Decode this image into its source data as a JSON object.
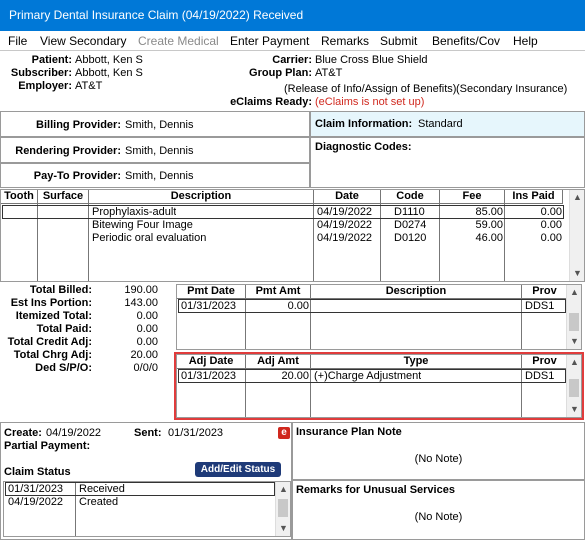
{
  "window": {
    "title": "Primary Dental Insurance Claim (04/19/2022) Received"
  },
  "menu": [
    {
      "label": "File",
      "enabled": true
    },
    {
      "label": "View Secondary",
      "enabled": true
    },
    {
      "label": "Create Medical",
      "enabled": false
    },
    {
      "label": "Enter Payment",
      "enabled": true
    },
    {
      "label": "Remarks",
      "enabled": true
    },
    {
      "label": "Submit",
      "enabled": true
    },
    {
      "label": "Benefits/Cov",
      "enabled": true
    },
    {
      "label": "Help",
      "enabled": true
    }
  ],
  "info": {
    "patient_label": "Patient:",
    "patient": "Abbott, Ken S",
    "subscriber_label": "Subscriber:",
    "subscriber": "Abbott, Ken S",
    "employer_label": "Employer:",
    "employer": "AT&T",
    "carrier_label": "Carrier:",
    "carrier": "Blue Cross Blue Shield",
    "group_plan_label": "Group Plan:",
    "group_plan": "AT&T",
    "release_text": "(Release of Info/Assign of Benefits)",
    "secondary_text": "(Secondary Insurance)",
    "eclaims_label": "eClaims Ready:",
    "eclaims": "(eClaims is not set up)"
  },
  "providers": {
    "billing_label": "Billing Provider:",
    "billing": "Smith, Dennis",
    "rendering_label": "Rendering Provider:",
    "rendering": "Smith, Dennis",
    "payto_label": "Pay-To Provider:",
    "payto": "Smith, Dennis"
  },
  "claim_info": {
    "label": "Claim Information:",
    "value": "Standard",
    "diag_label": "Diagnostic Codes:"
  },
  "procedures": {
    "headers": [
      "Tooth",
      "Surface",
      "Description",
      "Date",
      "Code",
      "Fee",
      "Ins Paid"
    ],
    "rows": [
      {
        "tooth": "",
        "surface": "",
        "description": "Prophylaxis-adult",
        "date": "04/19/2022",
        "code": "D1110",
        "fee": "85.00",
        "ins_paid": "0.00"
      },
      {
        "tooth": "",
        "surface": "",
        "description": "Bitewing Four Image",
        "date": "04/19/2022",
        "code": "D0274",
        "fee": "59.00",
        "ins_paid": "0.00"
      },
      {
        "tooth": "",
        "surface": "",
        "description": "Periodic oral evaluation",
        "date": "04/19/2022",
        "code": "D0120",
        "fee": "46.00",
        "ins_paid": "0.00"
      }
    ]
  },
  "totals": [
    {
      "label": "Total Billed:",
      "value": "190.00"
    },
    {
      "label": "Est Ins Portion:",
      "value": "143.00"
    },
    {
      "label": "Itemized Total:",
      "value": "0.00"
    },
    {
      "label": "Total Paid:",
      "value": "0.00"
    },
    {
      "label": "Total Credit Adj:",
      "value": "0.00"
    },
    {
      "label": "Total Chrg Adj:",
      "value": "20.00"
    },
    {
      "label": "Ded S/P/O:",
      "value": "0/0/0"
    }
  ],
  "payments": {
    "headers": [
      "Pmt Date",
      "Pmt Amt",
      "Description",
      "Prov"
    ],
    "rows": [
      {
        "date": "01/31/2023",
        "amount": "0.00",
        "description": "",
        "prov": "DDS1"
      }
    ]
  },
  "adjustments": {
    "headers": [
      "Adj Date",
      "Adj Amt",
      "Type",
      "Prov"
    ],
    "rows": [
      {
        "date": "01/31/2023",
        "amount": "20.00",
        "type": "(+)Charge Adjustment",
        "prov": "DDS1"
      }
    ],
    "highlight_color": "#e03c3c"
  },
  "status": {
    "create_label": "Create:",
    "create": "04/19/2022",
    "sent_label": "Sent:",
    "sent": "01/31/2023",
    "partial_label": "Partial Payment:",
    "claim_status_label": "Claim Status",
    "edit_button": "Add/Edit Status",
    "eclaim_icon_color": "#d0281e",
    "rows": [
      {
        "date": "01/31/2023",
        "status": "Received"
      },
      {
        "date": "04/19/2022",
        "status": "Created"
      }
    ]
  },
  "notes": {
    "plan_note_label": "Insurance Plan Note",
    "plan_note": "(No Note)",
    "remarks_label": "Remarks for Unusual Services",
    "remarks": "(No Note)"
  },
  "colors": {
    "title_bar": "#0078d7",
    "claim_info_bg": "#e6f6fc",
    "eclaims_text": "#d0281e",
    "button": "#1e3a78"
  }
}
